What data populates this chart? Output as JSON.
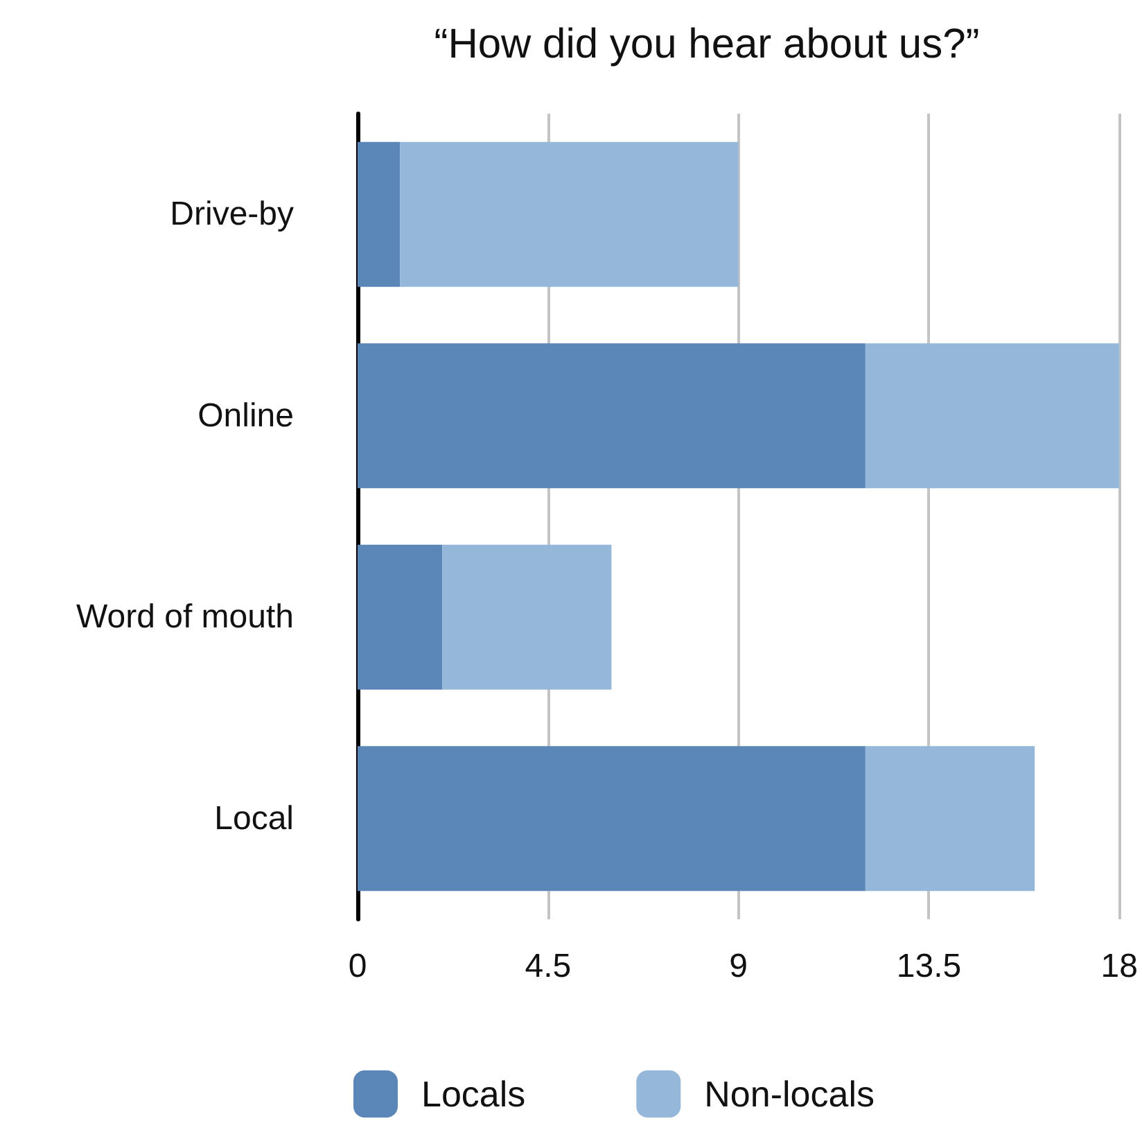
{
  "chart_data": {
    "type": "bar",
    "title": "“How did you hear about us?”",
    "orientation": "horizontal",
    "stacked": true,
    "categories": [
      "Drive-by",
      "Online",
      "Word of mouth",
      "Local"
    ],
    "series": [
      {
        "name": "Locals",
        "color": "#5b86b8",
        "values": [
          1,
          12,
          2,
          12
        ]
      },
      {
        "name": "Non-locals",
        "color": "#95b8da",
        "values": [
          8,
          6,
          4,
          4
        ]
      }
    ],
    "xlim": [
      0,
      18
    ],
    "xticks": [
      0,
      4.5,
      9,
      13.5,
      18
    ],
    "grid": "x",
    "legend": "bottom"
  }
}
